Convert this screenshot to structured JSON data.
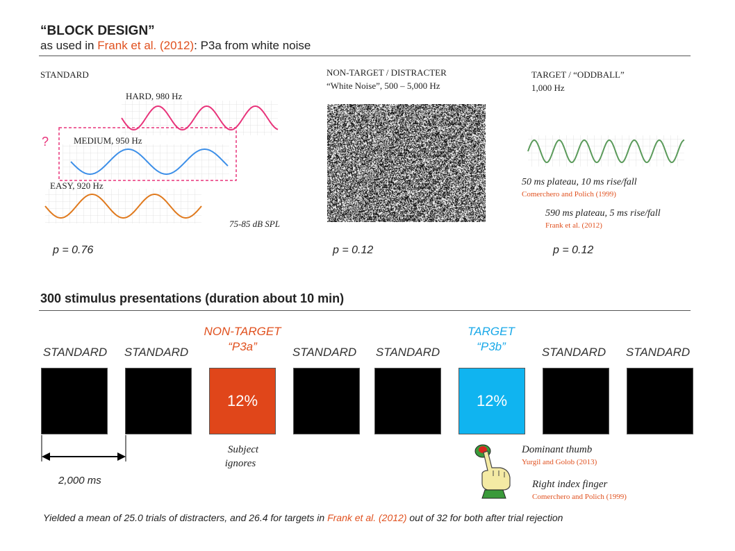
{
  "header": {
    "title": "“BLOCK DESIGN”",
    "subtitle_pre": "as used in ",
    "subtitle_ref": "Frank et al. (2012)",
    "subtitle_post": ": P3a from white noise"
  },
  "standard": {
    "heading": "STANDARD",
    "hard": "HARD, 980 Hz",
    "medium": "MEDIUM, 950 Hz",
    "easy": "EASY, 920 Hz",
    "question": "?",
    "spl": "75-85 dB SPL",
    "p": "p = 0.76"
  },
  "nontarget": {
    "heading": "NON-TARGET / DISTRACTER",
    "sub": "“White Noise”, 500 – 5,000 Hz",
    "p": "p = 0.12"
  },
  "target": {
    "heading": "TARGET / “ODDBALL”",
    "sub": "1,000 Hz",
    "note1": "50 ms plateau, 10 ms rise/fall",
    "ref1": "Comerchero and Polich (1999)",
    "note2": "590 ms plateau, 5 ms rise/fall",
    "ref2": "Frank et al. (2012)",
    "p": "p = 0.12"
  },
  "sequence": {
    "heading": "300 stimulus presentations (duration about 10 min)",
    "blocks": [
      {
        "label": "STANDARD",
        "sub": "",
        "value": ""
      },
      {
        "label": "STANDARD",
        "sub": "",
        "value": ""
      },
      {
        "label": "NON-TARGET",
        "sub": "“P3a”",
        "value": "12%"
      },
      {
        "label": "STANDARD",
        "sub": "",
        "value": ""
      },
      {
        "label": "STANDARD",
        "sub": "",
        "value": ""
      },
      {
        "label": "TARGET",
        "sub": "“P3b”",
        "value": "12%"
      },
      {
        "label": "STANDARD",
        "sub": "",
        "value": ""
      },
      {
        "label": "STANDARD",
        "sub": "",
        "value": ""
      }
    ],
    "duration": "2,000 ms",
    "ignore_1": "Subject",
    "ignore_2": "ignores",
    "thumb": "Dominant thumb",
    "thumb_ref": "Yurgil and Golob (2013)",
    "finger": "Right index finger",
    "finger_ref": "Comerchero and Polich (1999)"
  },
  "footer": {
    "pre": "Yielded a mean of 25.0 trials of distracters, and 26.4 for targets in ",
    "ref": "Frank et al. (2012)",
    "post": " out of 32 for both after trial rejection"
  },
  "colors": {
    "hard": "#e8337a",
    "medium": "#3d8fe8",
    "easy": "#e07a1e",
    "target_wave": "#5a9a5a",
    "nontarget_block": "#e0461a",
    "target_block": "#10b4f0",
    "orange_text": "#e0501e",
    "cyan_text": "#18a8e8"
  }
}
